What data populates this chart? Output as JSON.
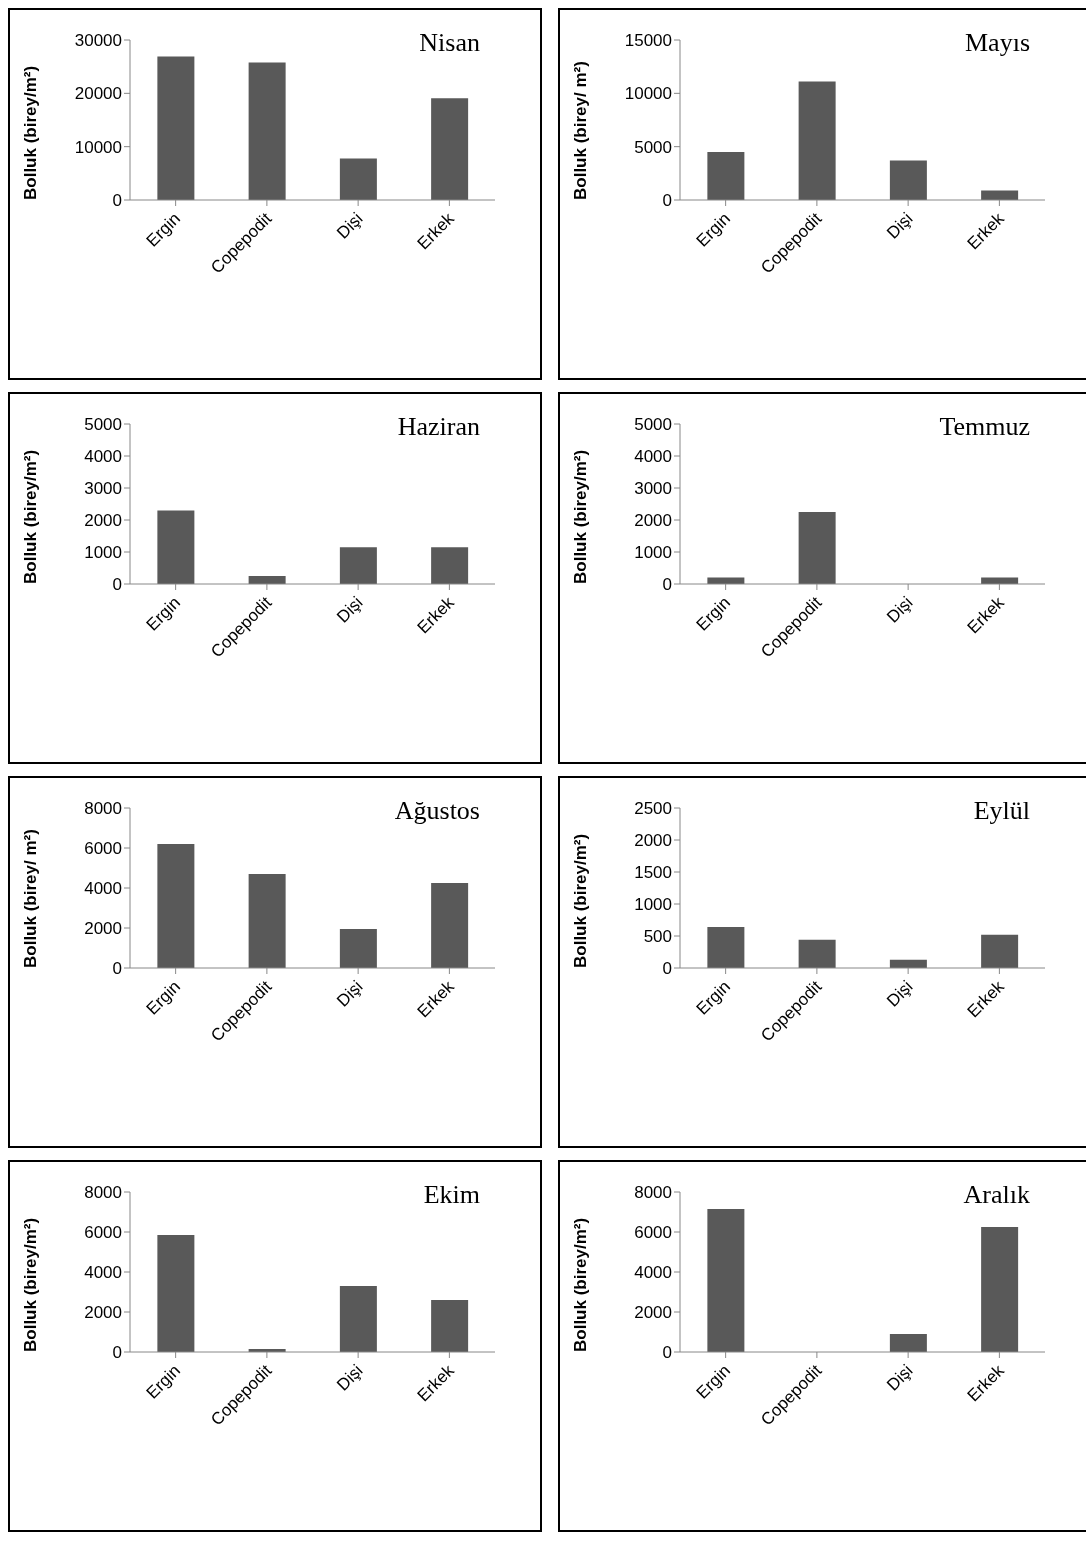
{
  "chart_data": [
    {
      "type": "bar",
      "title": "Nisan",
      "ylabel": "Bolluk (birey/m²)",
      "categories": [
        "Ergin",
        "Copepodit",
        "Dişi",
        "Erkek"
      ],
      "values": [
        26900,
        25800,
        7800,
        19100
      ],
      "color": "#595959",
      "ylim": [
        0,
        30000
      ],
      "yticks": [
        0,
        10000,
        20000,
        30000
      ]
    },
    {
      "type": "bar",
      "title": "Mayıs",
      "ylabel": "Bolluk (birey/ m²)",
      "categories": [
        "Ergin",
        "Copepodit",
        "Dişi",
        "Erkek"
      ],
      "values": [
        4500,
        11100,
        3700,
        900
      ],
      "color": "#595959",
      "ylim": [
        0,
        15000
      ],
      "yticks": [
        0,
        5000,
        10000,
        15000
      ]
    },
    {
      "type": "bar",
      "title": "Haziran",
      "ylabel": "Bolluk (birey/m²)",
      "categories": [
        "Ergin",
        "Copepodit",
        "Dişi",
        "Erkek"
      ],
      "values": [
        2300,
        250,
        1150,
        1150
      ],
      "color": "#595959",
      "ylim": [
        0,
        5000
      ],
      "yticks": [
        0,
        1000,
        2000,
        3000,
        4000,
        5000
      ]
    },
    {
      "type": "bar",
      "title": "Temmuz",
      "ylabel": "Bolluk (birey/m²)",
      "categories": [
        "Ergin",
        "Copepodit",
        "Dişi",
        "Erkek"
      ],
      "values": [
        200,
        2250,
        0,
        200
      ],
      "color": "#595959",
      "ylim": [
        0,
        5000
      ],
      "yticks": [
        0,
        1000,
        2000,
        3000,
        4000,
        5000
      ]
    },
    {
      "type": "bar",
      "title": "Ağustos",
      "ylabel": "Bolluk (birey/ m²)",
      "categories": [
        "Ergin",
        "Copepodit",
        "Dişi",
        "Erkek"
      ],
      "values": [
        6200,
        4700,
        1950,
        4250
      ],
      "color": "#595959",
      "ylim": [
        0,
        8000
      ],
      "yticks": [
        0,
        2000,
        4000,
        6000,
        8000
      ]
    },
    {
      "type": "bar",
      "title": "Eylül",
      "ylabel": "Bolluk (birey/m²)",
      "categories": [
        "Ergin",
        "Copepodit",
        "Dişi",
        "Erkek"
      ],
      "values": [
        640,
        440,
        130,
        520
      ],
      "color": "#595959",
      "ylim": [
        0,
        2500
      ],
      "yticks": [
        0,
        500,
        1000,
        1500,
        2000,
        2500
      ]
    },
    {
      "type": "bar",
      "title": "Ekim",
      "ylabel": "Bolluk (birey/m²)",
      "categories": [
        "Ergin",
        "Copepodit",
        "Dişi",
        "Erkek"
      ],
      "values": [
        5850,
        150,
        3300,
        2600
      ],
      "color": "#595959",
      "ylim": [
        0,
        8000
      ],
      "yticks": [
        0,
        2000,
        4000,
        6000,
        8000
      ]
    },
    {
      "type": "bar",
      "title": "Aralık",
      "ylabel": "Bolluk (birey/m²)",
      "categories": [
        "Ergin",
        "Copepodit",
        "Dişi",
        "Erkek"
      ],
      "values": [
        7150,
        0,
        900,
        6250
      ],
      "color": "#595959",
      "ylim": [
        0,
        8000
      ],
      "yticks": [
        0,
        2000,
        4000,
        6000,
        8000
      ]
    }
  ]
}
